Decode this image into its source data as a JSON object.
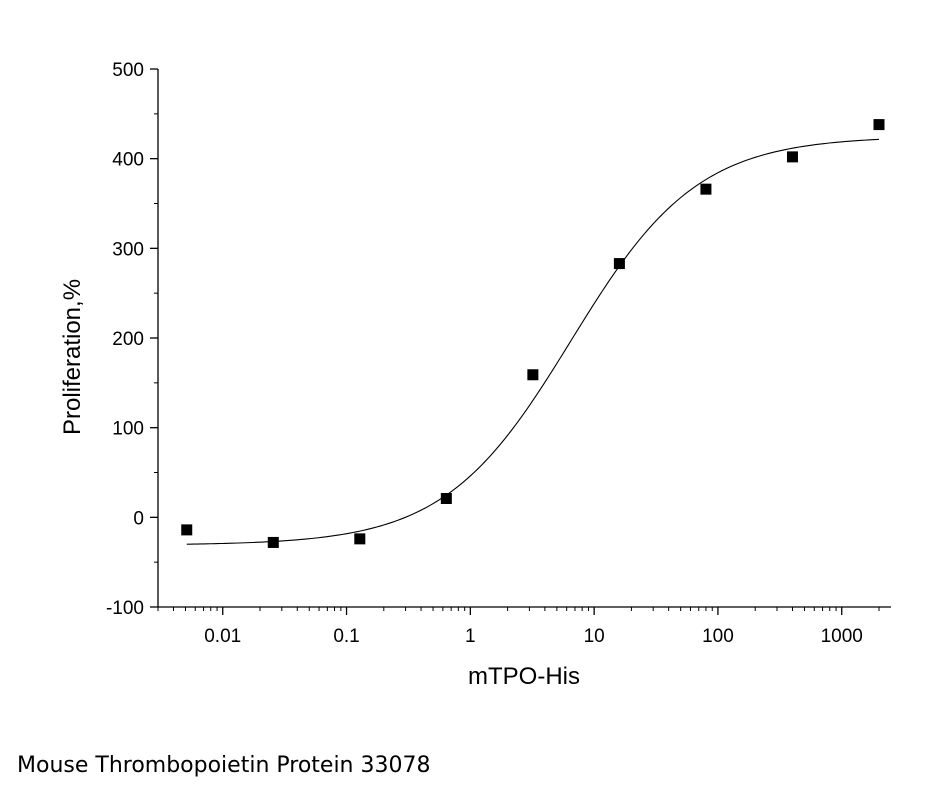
{
  "caption": "Mouse Thrombopoietin Protein 33078",
  "chart_data": {
    "type": "scatter",
    "xlabel": "mTPO-His",
    "ylabel": "Proliferation,%",
    "x_scale": "log",
    "xlim": [
      0.003,
      2500
    ],
    "ylim": [
      -100,
      500
    ],
    "x_ticks": [
      0.01,
      0.1,
      1,
      10,
      100,
      1000
    ],
    "x_tick_labels": [
      "0.01",
      "0.1",
      "1",
      "10",
      "100",
      "1000"
    ],
    "y_ticks": [
      -100,
      0,
      100,
      200,
      300,
      400,
      500
    ],
    "y_tick_labels": [
      "-100",
      "0",
      "100",
      "200",
      "300",
      "400",
      "500"
    ],
    "grid": false,
    "legend": "none",
    "marker": "square",
    "marker_color": "#000000",
    "series": [
      {
        "x": [
          0.00512,
          0.0256,
          0.128,
          0.64,
          3.2,
          16,
          80,
          400,
          2000
        ],
        "y": [
          -14,
          -28,
          -24,
          21,
          159,
          283,
          366,
          402,
          438
        ]
      }
    ],
    "fit": {
      "type": "four-parameter logistic",
      "bottom": -31,
      "top": 425,
      "ec50": 6.5,
      "hill": 0.85
    }
  }
}
